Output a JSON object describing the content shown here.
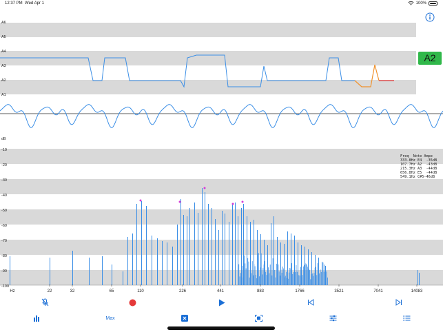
{
  "status": {
    "time": "12:37 PM",
    "date": "Wed Apr 1",
    "battery": "100%"
  },
  "note_display": "A2",
  "pitch_track": {
    "labels": [
      "A6",
      "A5",
      "A4",
      "A3",
      "A2",
      "A1"
    ]
  },
  "spectrum": {
    "db_unit": "dB",
    "db_labels": [
      "-10",
      "-20",
      "-30",
      "-40",
      "-50",
      "-60",
      "-70",
      "-80",
      "-90",
      "-100"
    ],
    "freq_unit": "Hz",
    "freq_labels": [
      "22",
      "32",
      "65",
      "110",
      "226",
      "441",
      "883",
      "1766",
      "3521",
      "7041",
      "14083"
    ]
  },
  "freq_table": {
    "header": "Freq  Note Ampe",
    "rows": [
      "333.8Hz E4  -35dB",
      "107.7Hz A2  -43dB",
      "215.3Hz A3  -44dB",
      "656.8Hz E5  -44dB",
      "549.1Hz C#5-46dB"
    ]
  },
  "toolbar": {
    "max_label": "Max",
    "icons": [
      "mic-off-icon",
      "record-icon",
      "play-icon",
      "skip-back-icon",
      "skip-forward-icon",
      "bar-chart-icon",
      "checkbox-x-icon",
      "scan-icon",
      "sliders-icon",
      "list-icon"
    ]
  },
  "colors": {
    "accent": "#1b6fd6",
    "wave": "#3a8ee6",
    "record": "#e53939",
    "note_badge": "#30b84a",
    "band": "#d9d9d9"
  }
}
